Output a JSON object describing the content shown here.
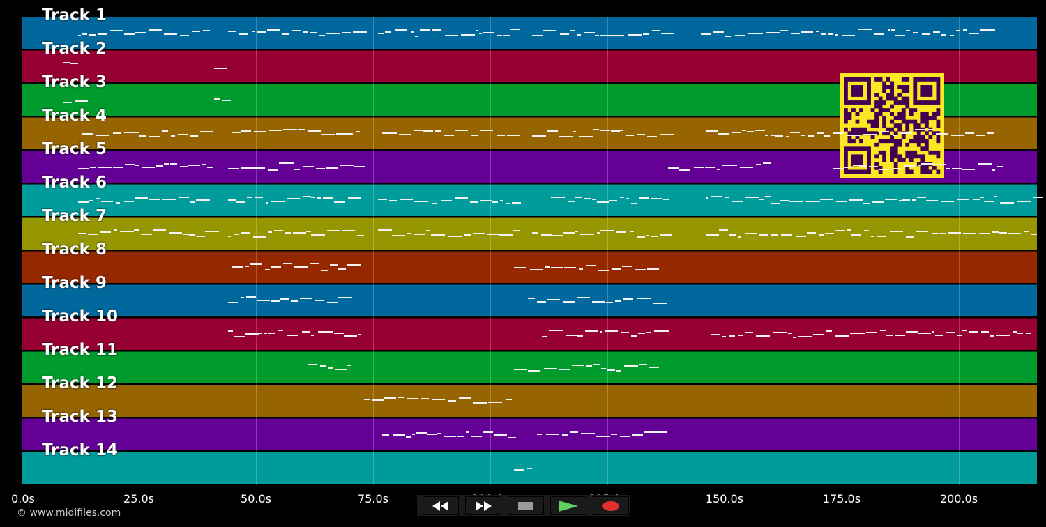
{
  "axis": {
    "unit": "s",
    "ticks": [
      {
        "label": "0.0s",
        "t": 0
      },
      {
        "label": "25.0s",
        "t": 25
      },
      {
        "label": "50.0s",
        "t": 50
      },
      {
        "label": "75.0s",
        "t": 75
      },
      {
        "label": "100.0s",
        "t": 100
      },
      {
        "label": "125.0s",
        "t": 125
      },
      {
        "label": "150.0s",
        "t": 150
      },
      {
        "label": "175.0s",
        "t": 175
      },
      {
        "label": "200.0s",
        "t": 200
      }
    ]
  },
  "tracks": [
    {
      "name": "Track 1",
      "color": "#00689d"
    },
    {
      "name": "Track 2",
      "color": "#960032"
    },
    {
      "name": "Track 3",
      "color": "#009b2d"
    },
    {
      "name": "Track 4",
      "color": "#966400"
    },
    {
      "name": "Track 5",
      "color": "#640096"
    },
    {
      "name": "Track 6",
      "color": "#009b9b"
    },
    {
      "name": "Track 7",
      "color": "#969600"
    },
    {
      "name": "Track 8",
      "color": "#962800"
    },
    {
      "name": "Track 9",
      "color": "#00689d"
    },
    {
      "name": "Track 10",
      "color": "#960032"
    },
    {
      "name": "Track 11",
      "color": "#009b2d"
    },
    {
      "name": "Track 12",
      "color": "#966400"
    },
    {
      "name": "Track 13",
      "color": "#640096"
    },
    {
      "name": "Track 14",
      "color": "#009b9b"
    }
  ],
  "note_color": "#f2f2f2",
  "qr": {
    "color_bg": "#fde725",
    "color_fg": "#440154"
  },
  "copyright": "© www.midifiles.com",
  "transport": {
    "buttons": [
      {
        "name": "rewind-button",
        "icon": "rewind-icon",
        "color": "#111111",
        "glyph_color": "#ffffff"
      },
      {
        "name": "fast-forward-button",
        "icon": "fast-forward-icon",
        "color": "#111111",
        "glyph_color": "#ffffff"
      },
      {
        "name": "stop-button",
        "icon": "stop-icon",
        "color": "#303030",
        "glyph_color": "#9a9a9a"
      },
      {
        "name": "play-button",
        "icon": "play-icon",
        "color": "#1e5a1e",
        "glyph_color": "#5fd05f"
      },
      {
        "name": "record-button",
        "icon": "record-icon",
        "color": "#5a1c1c",
        "glyph_color": "#e03030"
      }
    ]
  }
}
